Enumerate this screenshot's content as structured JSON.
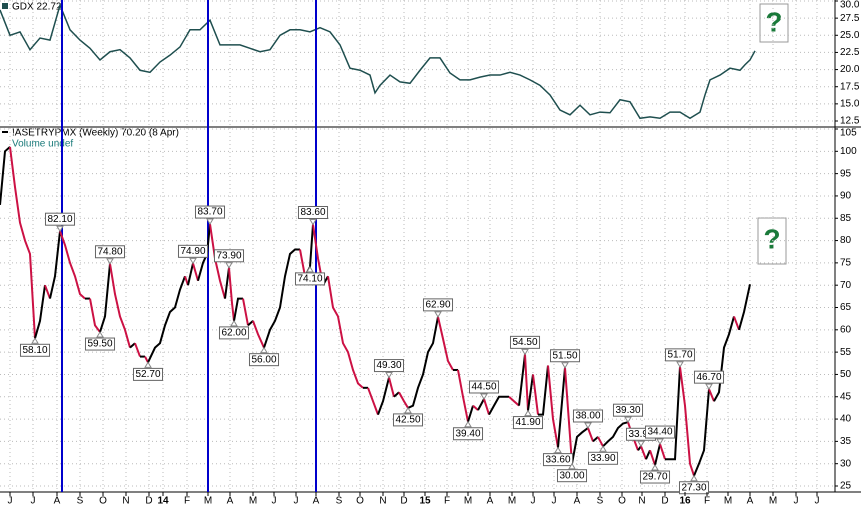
{
  "chart_data": [
    {
      "type": "line",
      "title": "GDX 22.72",
      "color": "#1f4f4f",
      "x": [
        0,
        2,
        4,
        6,
        8,
        10,
        12,
        14,
        16,
        18,
        20,
        22,
        24,
        26,
        28,
        30,
        32,
        34,
        36,
        38,
        40,
        42,
        44,
        46,
        48,
        50,
        52,
        54,
        56,
        58,
        60,
        62,
        64,
        66,
        68,
        70,
        72,
        74,
        75,
        76,
        78,
        80,
        82,
        84,
        86,
        88,
        90,
        92,
        94,
        96,
        98,
        100,
        102,
        104,
        106,
        108,
        110,
        112,
        114,
        116,
        118,
        120,
        122,
        124,
        126,
        128,
        130,
        132,
        134,
        136,
        138,
        140,
        141,
        142,
        144,
        146,
        148,
        149,
        150,
        151
      ],
      "values": [
        28.7,
        25.0,
        25.5,
        22.9,
        24.6,
        24.3,
        29.4,
        25.8,
        24.3,
        23.1,
        21.4,
        22.6,
        22.9,
        21.7,
        19.9,
        19.6,
        21.1,
        22.1,
        23.3,
        25.8,
        25.8,
        27.2,
        23.6,
        23.6,
        23.6,
        23.1,
        22.6,
        22.9,
        25.0,
        25.8,
        25.8,
        25.5,
        26.1,
        25.5,
        23.6,
        20.2,
        19.9,
        19.2,
        16.6,
        17.7,
        19.2,
        18.2,
        18.0,
        19.9,
        21.7,
        21.7,
        19.5,
        18.5,
        18.5,
        18.9,
        19.2,
        19.2,
        19.6,
        19.2,
        18.5,
        17.7,
        16.3,
        14.1,
        13.4,
        14.8,
        13.4,
        13.8,
        13.7,
        15.6,
        15.3,
        12.9,
        13.1,
        12.9,
        13.8,
        13.8,
        12.9,
        13.8,
        16.3,
        18.5,
        19.2,
        20.2,
        19.9,
        20.7,
        21.4,
        22.72
      ],
      "xlim": [
        0,
        167
      ],
      "ylim": [
        12.5,
        30
      ],
      "yticks": [
        12.5,
        {
          "value": 15,
          "label": "15.0"
        },
        17.5,
        {
          "value": 20,
          "label": "20.0"
        },
        22.5,
        {
          "value": 25,
          "label": "25.0"
        },
        27.5,
        {
          "value": 30,
          "label": "30.0"
        }
      ],
      "grid": true,
      "annotation": "?"
    },
    {
      "type": "swing-line",
      "title": "!ASETRYPMX (Weekly) 70.20 (8 Apr)",
      "subtitle": "Volume undef",
      "rise_color": "#000000",
      "fall_color": "#cc1144",
      "x": [
        0,
        1,
        2,
        3,
        4,
        5,
        6,
        7,
        8,
        9,
        10,
        11,
        12,
        13,
        14,
        15,
        16,
        17,
        18,
        19,
        20,
        21,
        22,
        23,
        24,
        25,
        26,
        27,
        28,
        29,
        29.6,
        31,
        32,
        33,
        34,
        35,
        36,
        37,
        37.6,
        38.6,
        39.6,
        40.6,
        41.4,
        42,
        43,
        44,
        45,
        45.8,
        46.4,
        46.8,
        47.6,
        48.6,
        49.6,
        50.6,
        51.6,
        52.8,
        54,
        55,
        56,
        57,
        58,
        59,
        60,
        61,
        62,
        62.6,
        63.6,
        64.6,
        65.6,
        66.6,
        67.6,
        68.6,
        69.6,
        70.6,
        71.6,
        72.6,
        73.6,
        74.6,
        75.6,
        76.6,
        77.8,
        78.8,
        79.8,
        80.8,
        81.6,
        82.6,
        83.6,
        84.6,
        85.6,
        86.6,
        87.6,
        88.6,
        89.6,
        90.6,
        91.6,
        92.6,
        93.6,
        94.6,
        95.6,
        96.8,
        97.8,
        98.8,
        99.8,
        100.8,
        101.8,
        102.8,
        103.8,
        105,
        105.6,
        106.6,
        107.6,
        108.6,
        109.6,
        110.6,
        111.6,
        113,
        114.4,
        115.4,
        116.4,
        117.6,
        118.6,
        119.6,
        120.6,
        121.6,
        122.6,
        123.6,
        124.6,
        125.6,
        126.6,
        127.6,
        128.2,
        129.2,
        130,
        131,
        132,
        133,
        134,
        135,
        136,
        137,
        138,
        138.8,
        139.8,
        140.8,
        141.8,
        142.8,
        143.8,
        144.8,
        145.8,
        146.8,
        147.8,
        148.8,
        150
      ],
      "values": [
        88,
        100,
        101,
        92,
        84,
        80,
        77,
        58.1,
        62,
        70,
        67,
        72,
        82.1,
        79,
        75,
        72,
        68,
        67,
        67,
        61,
        59.5,
        63,
        74.8,
        68,
        63,
        60,
        56,
        57,
        54,
        54,
        52.7,
        56,
        57,
        61,
        64,
        65,
        69,
        72,
        70,
        74.9,
        71,
        75,
        77,
        83.7,
        76,
        71,
        67,
        73.9,
        66,
        62,
        67,
        67,
        61,
        62,
        59,
        56,
        60,
        62,
        65,
        72,
        77,
        78,
        78,
        72,
        74.1,
        83.6,
        76,
        70,
        72,
        65,
        63,
        57,
        55,
        51,
        48,
        47,
        47,
        44,
        41,
        44,
        49.3,
        45,
        46,
        44,
        42.5,
        43,
        47,
        50,
        55,
        57,
        62.9,
        58,
        53,
        51,
        51,
        45,
        39.4,
        43,
        42,
        44.5,
        41,
        43,
        45,
        45,
        45,
        44,
        43,
        54.5,
        41.9,
        50,
        41,
        41,
        52,
        40,
        33.6,
        51.5,
        30,
        36,
        37,
        38,
        35,
        36,
        33.9,
        35,
        36,
        38,
        39,
        39.3,
        36,
        33,
        33.9,
        31,
        33,
        29.7,
        34.4,
        31,
        31,
        31,
        51.7,
        43,
        30,
        27.3,
        30,
        33,
        46.7,
        44,
        46,
        56,
        59,
        63,
        60,
        64,
        70.2
      ],
      "annotations": [
        {
          "x": 7,
          "value": 58.1,
          "label": "58.10"
        },
        {
          "x": 12,
          "value": 82.1,
          "label": "82.10"
        },
        {
          "x": 20,
          "value": 59.5,
          "label": "59.50"
        },
        {
          "x": 22,
          "value": 74.8,
          "label": "74.80"
        },
        {
          "x": 29.6,
          "value": 52.7,
          "label": "52.70"
        },
        {
          "x": 38.6,
          "value": 74.9,
          "label": "74.90"
        },
        {
          "x": 42,
          "value": 83.7,
          "label": "83.70"
        },
        {
          "x": 45.8,
          "value": 73.9,
          "label": "73.90"
        },
        {
          "x": 46.8,
          "value": 62,
          "label": "62.00"
        },
        {
          "x": 52.8,
          "value": 56,
          "label": "56.00"
        },
        {
          "x": 62,
          "value": 74.1,
          "label": "74.10"
        },
        {
          "x": 62.6,
          "value": 83.6,
          "label": "83.60"
        },
        {
          "x": 77.8,
          "value": 49.3,
          "label": "49.30"
        },
        {
          "x": 81.6,
          "value": 42.5,
          "label": "42.50"
        },
        {
          "x": 87.6,
          "value": 62.9,
          "label": "62.90"
        },
        {
          "x": 93.6,
          "value": 39.4,
          "label": "39.40"
        },
        {
          "x": 96.8,
          "value": 44.5,
          "label": "44.50"
        },
        {
          "x": 105,
          "value": 54.5,
          "label": "54.50"
        },
        {
          "x": 105.6,
          "value": 41.9,
          "label": "41.90"
        },
        {
          "x": 111.6,
          "value": 33.6,
          "label": "33.60"
        },
        {
          "x": 113,
          "value": 51.5,
          "label": "51.50"
        },
        {
          "x": 114.4,
          "value": 30,
          "label": "30.00"
        },
        {
          "x": 117.6,
          "value": 38,
          "label": "38.00"
        },
        {
          "x": 120.6,
          "value": 33.9,
          "label": "33.90"
        },
        {
          "x": 125.6,
          "value": 39.3,
          "label": "39.30"
        },
        {
          "x": 128.2,
          "value": 33.9,
          "label": "33.90"
        },
        {
          "x": 131,
          "value": 29.7,
          "label": "29.70"
        },
        {
          "x": 132,
          "value": 34.4,
          "label": "34.40"
        },
        {
          "x": 136,
          "value": 51.7,
          "label": "51.70"
        },
        {
          "x": 138.8,
          "value": 27.3,
          "label": "27.30"
        },
        {
          "x": 141.8,
          "value": 46.7,
          "label": "46.70"
        }
      ],
      "vertical_lines": [
        12.4,
        41.6,
        63.2
      ],
      "vertical_line_color": "#0000cc",
      "xlim": [
        0,
        167
      ],
      "ylim": [
        25,
        105
      ],
      "yticks": [
        25,
        30,
        35,
        40,
        45,
        50,
        55,
        60,
        65,
        70,
        75,
        80,
        85,
        90,
        95,
        100,
        105
      ],
      "xticks": [
        {
          "value": 2,
          "label": "J"
        },
        {
          "value": 6.6,
          "label": "J"
        },
        {
          "value": 11.4,
          "label": "A"
        },
        {
          "value": 16,
          "label": "S"
        },
        {
          "value": 20.6,
          "label": "O"
        },
        {
          "value": 25.2,
          "label": "N"
        },
        {
          "value": 29.8,
          "label": "D"
        },
        {
          "value": 32.6,
          "label": "14"
        },
        {
          "value": 37.4,
          "label": "F"
        },
        {
          "value": 41.6,
          "label": "M"
        },
        {
          "value": 46,
          "label": "A"
        },
        {
          "value": 50.6,
          "label": "M"
        },
        {
          "value": 54.8,
          "label": "J"
        },
        {
          "value": 59.2,
          "label": "J"
        },
        {
          "value": 63.2,
          "label": "A"
        },
        {
          "value": 67.8,
          "label": "S"
        },
        {
          "value": 72,
          "label": "O"
        },
        {
          "value": 76.6,
          "label": "N"
        },
        {
          "value": 80.8,
          "label": "D"
        },
        {
          "value": 85,
          "label": "15"
        },
        {
          "value": 89.4,
          "label": "F"
        },
        {
          "value": 93.6,
          "label": "M"
        },
        {
          "value": 98,
          "label": "A"
        },
        {
          "value": 102.4,
          "label": "M"
        },
        {
          "value": 106.6,
          "label": "J"
        },
        {
          "value": 110.8,
          "label": "J"
        },
        {
          "value": 115.4,
          "label": "A"
        },
        {
          "value": 120,
          "label": "S"
        },
        {
          "value": 124.4,
          "label": "O"
        },
        {
          "value": 128.4,
          "label": "N"
        },
        {
          "value": 133,
          "label": "D"
        },
        {
          "value": 137,
          "label": "16"
        },
        {
          "value": 141.4,
          "label": "F"
        },
        {
          "value": 145.6,
          "label": "M"
        },
        {
          "value": 150,
          "label": "A"
        },
        {
          "value": 154.6,
          "label": "M"
        },
        {
          "value": 159.2,
          "label": "J"
        },
        {
          "value": 163.4,
          "label": "J"
        }
      ],
      "grid": true,
      "annotation": "?"
    }
  ]
}
